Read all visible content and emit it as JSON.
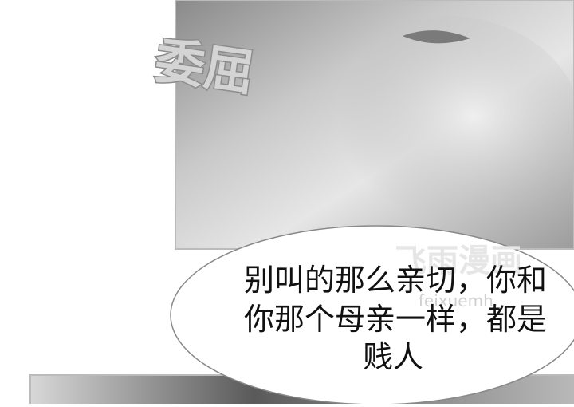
{
  "sound_effect": "委屈",
  "speech_bubble": {
    "lines": [
      "别叫的那么亲切，你和",
      "你那个母亲一样，都是",
      "贱人"
    ]
  },
  "watermark": {
    "title": "飞雨漫画",
    "url": "feixuemh."
  }
}
